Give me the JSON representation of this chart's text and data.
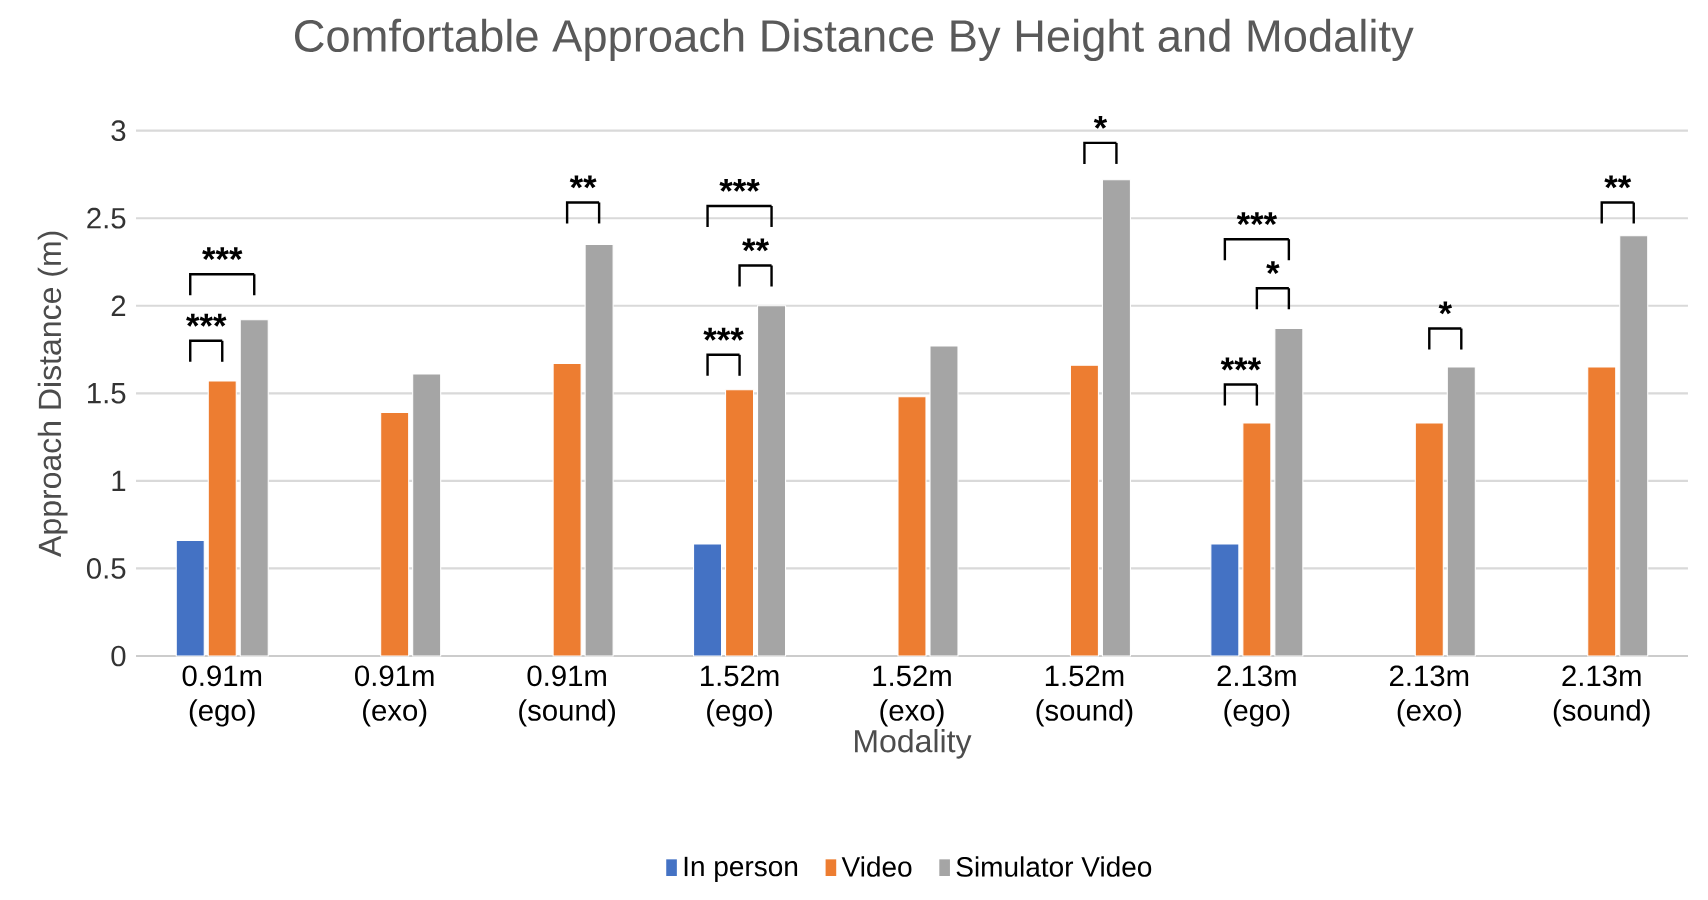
{
  "chart_data": {
    "type": "bar",
    "title": "Comfortable Approach Distance By Height and Modality",
    "xlabel": "Modality",
    "ylabel": "Approach Distance (m)",
    "categories": [
      "0.91m (ego)",
      "0.91m (exo)",
      "0.91m (sound)",
      "1.52m (ego)",
      "1.52m (exo)",
      "1.52m (sound)",
      "2.13m (ego)",
      "2.13m (exo)",
      "2.13m (sound)"
    ],
    "series": [
      {
        "name": "In person",
        "color": "#4472c4",
        "values": [
          0.66,
          null,
          null,
          0.64,
          null,
          null,
          0.64,
          null,
          null
        ]
      },
      {
        "name": "Video",
        "color": "#ed7d31",
        "values": [
          1.57,
          1.39,
          1.67,
          1.52,
          1.48,
          1.66,
          1.33,
          1.33,
          1.65
        ]
      },
      {
        "name": "Simulator Video",
        "color": "#a5a5a5",
        "values": [
          1.92,
          1.61,
          2.35,
          2.0,
          1.77,
          2.72,
          1.87,
          1.65,
          2.4
        ]
      }
    ],
    "ylim": [
      0,
      3
    ],
    "yticks": [
      0,
      0.5,
      1,
      1.5,
      2,
      2.5,
      3
    ],
    "grid": "y",
    "legend": "bottom",
    "annotations": [
      "***",
      "***",
      "**",
      "***",
      "**",
      "***",
      "*",
      "***",
      "*",
      "***",
      "*",
      "**"
    ]
  }
}
